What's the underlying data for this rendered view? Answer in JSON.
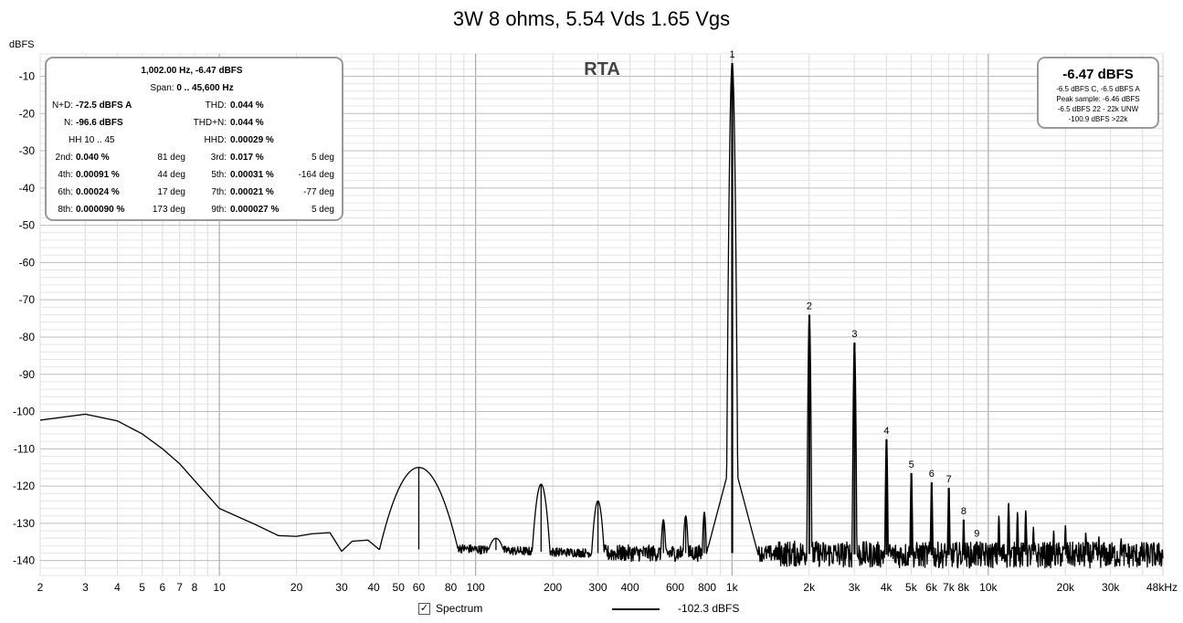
{
  "title": "3W 8 ohms, 5.54 Vds 1.65 Vgs",
  "ylabel": "dBFS",
  "rta_label": "RTA",
  "info_box": {
    "freq_line": "1,002.00 Hz, -6.47 dBFS",
    "span_label": "Span: ",
    "span_value": "0 .. 45,600 Hz",
    "nd_label": "N+D:",
    "nd_value": "-72.5 dBFS A",
    "thd_label": "THD:",
    "thd_value": "0.044 %",
    "n_label": "N:",
    "n_value": "-96.6 dBFS",
    "thdn_label": "THD+N:",
    "thdn_value": "0.044 %",
    "hh_label": "HH 10 .. 45",
    "hhd_label": "HHD:",
    "hhd_value": "0.00029 %",
    "harmonics": [
      {
        "l1": "2nd:",
        "v1": "0.040 %",
        "d1": "81 deg",
        "l2": "3rd:",
        "v2": "0.017 %",
        "d2": "5 deg"
      },
      {
        "l1": "4th:",
        "v1": "0.00091 %",
        "d1": "44 deg",
        "l2": "5th:",
        "v2": "0.00031 %",
        "d2": "-164 deg"
      },
      {
        "l1": "6th:",
        "v1": "0.00024 %",
        "d1": "17 deg",
        "l2": "7th:",
        "v2": "0.00021 %",
        "d2": "-77 deg"
      },
      {
        "l1": "8th:",
        "v1": "0.000090 %",
        "d1": "173 deg",
        "l2": "9th:",
        "v2": "0.000027 %",
        "d2": "5 deg"
      }
    ]
  },
  "level_box": {
    "main": "-6.47 dBFS",
    "lines": [
      "-6.5 dBFS C, -6.5 dBFS A",
      "Peak sample: -6.46 dBFS",
      "-6.5 dBFS 22 - 22k UNW",
      "-100.9 dBFS >22k"
    ]
  },
  "legend": {
    "checkbox_mark": "✓",
    "series_label": "Spectrum",
    "cursor_value": "-102.3 dBFS"
  },
  "colors": {
    "trace": "#000000",
    "grid_major": "#9a9a9a",
    "grid_minor": "#dcdcdc",
    "frame": "#cfcfcf",
    "box_border": "#999999"
  },
  "chart_data": {
    "type": "line",
    "title": "3W 8 ohms, 5.54 Vds 1.65 Vgs",
    "xlabel": "",
    "ylabel": "dBFS",
    "xscale": "log",
    "xlim": [
      2,
      48000
    ],
    "ylim": [
      -144,
      -4
    ],
    "grid": true,
    "x_ticks": [
      {
        "v": 2,
        "t": "2"
      },
      {
        "v": 3,
        "t": "3"
      },
      {
        "v": 4,
        "t": "4"
      },
      {
        "v": 5,
        "t": "5"
      },
      {
        "v": 6,
        "t": "6"
      },
      {
        "v": 7,
        "t": "7"
      },
      {
        "v": 8,
        "t": "8"
      },
      {
        "v": 10,
        "t": "10"
      },
      {
        "v": 20,
        "t": "20"
      },
      {
        "v": 30,
        "t": "30"
      },
      {
        "v": 40,
        "t": "40"
      },
      {
        "v": 50,
        "t": "50"
      },
      {
        "v": 60,
        "t": "60"
      },
      {
        "v": 80,
        "t": "80"
      },
      {
        "v": 100,
        "t": "100"
      },
      {
        "v": 200,
        "t": "200"
      },
      {
        "v": 300,
        "t": "300"
      },
      {
        "v": 400,
        "t": "400"
      },
      {
        "v": 600,
        "t": "600"
      },
      {
        "v": 800,
        "t": "800"
      },
      {
        "v": 1000,
        "t": "1k"
      },
      {
        "v": 2000,
        "t": "2k"
      },
      {
        "v": 3000,
        "t": "3k"
      },
      {
        "v": 4000,
        "t": "4k"
      },
      {
        "v": 5000,
        "t": "5k"
      },
      {
        "v": 6000,
        "t": "6k"
      },
      {
        "v": 7000,
        "t": "7k"
      },
      {
        "v": 8000,
        "t": "8k"
      },
      {
        "v": 10000,
        "t": "10k"
      },
      {
        "v": 20000,
        "t": "20k"
      },
      {
        "v": 30000,
        "t": "30k"
      },
      {
        "v": 48000,
        "t": "48kHz"
      }
    ],
    "y_ticks": [
      -10,
      -20,
      -30,
      -40,
      -50,
      -60,
      -70,
      -80,
      -90,
      -100,
      -110,
      -120,
      -130,
      -140
    ],
    "noise_floor": [
      [
        2,
        -102.3
      ],
      [
        3,
        -100.7
      ],
      [
        4,
        -102.5
      ],
      [
        5,
        -106
      ],
      [
        6,
        -110
      ],
      [
        7,
        -114
      ],
      [
        8,
        -118.5
      ],
      [
        10,
        -126
      ],
      [
        14,
        -130.5
      ],
      [
        17,
        -133.3
      ],
      [
        20,
        -133.5
      ],
      [
        23,
        -132.8
      ],
      [
        27,
        -132.5
      ],
      [
        30,
        -137.5
      ],
      [
        33,
        -134.8
      ],
      [
        38,
        -134.5
      ],
      [
        42,
        -137
      ],
      [
        47,
        -135.5
      ],
      [
        52,
        -136.5
      ],
      [
        56,
        -135
      ],
      [
        60,
        -137
      ],
      [
        70,
        -137.5
      ],
      [
        80,
        -136.5
      ],
      [
        100,
        -137
      ],
      [
        160,
        -137.5
      ],
      [
        300,
        -138
      ],
      [
        1000,
        -138
      ],
      [
        5000,
        -138.5
      ],
      [
        10000,
        -138.5
      ],
      [
        48000,
        -138.5
      ]
    ],
    "peaks": [
      {
        "x": 60,
        "y": -115,
        "w": 0.04
      },
      {
        "x": 120,
        "y": -134,
        "w": 0.02
      },
      {
        "x": 180,
        "y": -119.5,
        "w": 0.01
      },
      {
        "x": 300,
        "y": -124,
        "w": 0.008
      },
      {
        "x": 540,
        "y": -129,
        "w": 0.004
      },
      {
        "x": 660,
        "y": -128,
        "w": 0.004
      },
      {
        "x": 780,
        "y": -127,
        "w": 0.003
      },
      {
        "x": 1002,
        "y": -6.47,
        "w": 0.0025
      },
      {
        "x": 2004,
        "y": -74,
        "w": 0.0015
      },
      {
        "x": 3006,
        "y": -81.5,
        "w": 0.0015
      },
      {
        "x": 4008,
        "y": -107.5,
        "w": 0.0015
      },
      {
        "x": 5010,
        "y": -116.5,
        "w": 0.0015
      },
      {
        "x": 6012,
        "y": -119,
        "w": 0.0015
      },
      {
        "x": 7014,
        "y": -120.5,
        "w": 0.0015
      },
      {
        "x": 8016,
        "y": -129,
        "w": 0.0015
      },
      {
        "x": 9018,
        "y": -135,
        "w": 0.0015
      },
      {
        "x": 11000,
        "y": -128,
        "w": 0.0015
      },
      {
        "x": 12000,
        "y": -124.5,
        "w": 0.0015
      },
      {
        "x": 13000,
        "y": -127,
        "w": 0.0015
      },
      {
        "x": 14000,
        "y": -126.5,
        "w": 0.0015
      },
      {
        "x": 15000,
        "y": -131,
        "w": 0.0015
      },
      {
        "x": 18000,
        "y": -132,
        "w": 0.0015
      },
      {
        "x": 20000,
        "y": -130.5,
        "w": 0.0015
      },
      {
        "x": 24000,
        "y": -132.5,
        "w": 0.0015
      },
      {
        "x": 27000,
        "y": -133.5,
        "w": 0.0015
      },
      {
        "x": 33000,
        "y": -134,
        "w": 0.0015
      }
    ],
    "harmonic_labels": [
      {
        "x": 1002,
        "y": -6.47,
        "t": "1"
      },
      {
        "x": 2004,
        "y": -74,
        "t": "2"
      },
      {
        "x": 3006,
        "y": -81.5,
        "t": "3"
      },
      {
        "x": 4008,
        "y": -107.5,
        "t": "4"
      },
      {
        "x": 5010,
        "y": -116.5,
        "t": "5"
      },
      {
        "x": 6012,
        "y": -119,
        "t": "6"
      },
      {
        "x": 7014,
        "y": -120.5,
        "t": "7"
      },
      {
        "x": 8016,
        "y": -129,
        "t": "8"
      },
      {
        "x": 9018,
        "y": -135,
        "t": "9"
      }
    ]
  }
}
